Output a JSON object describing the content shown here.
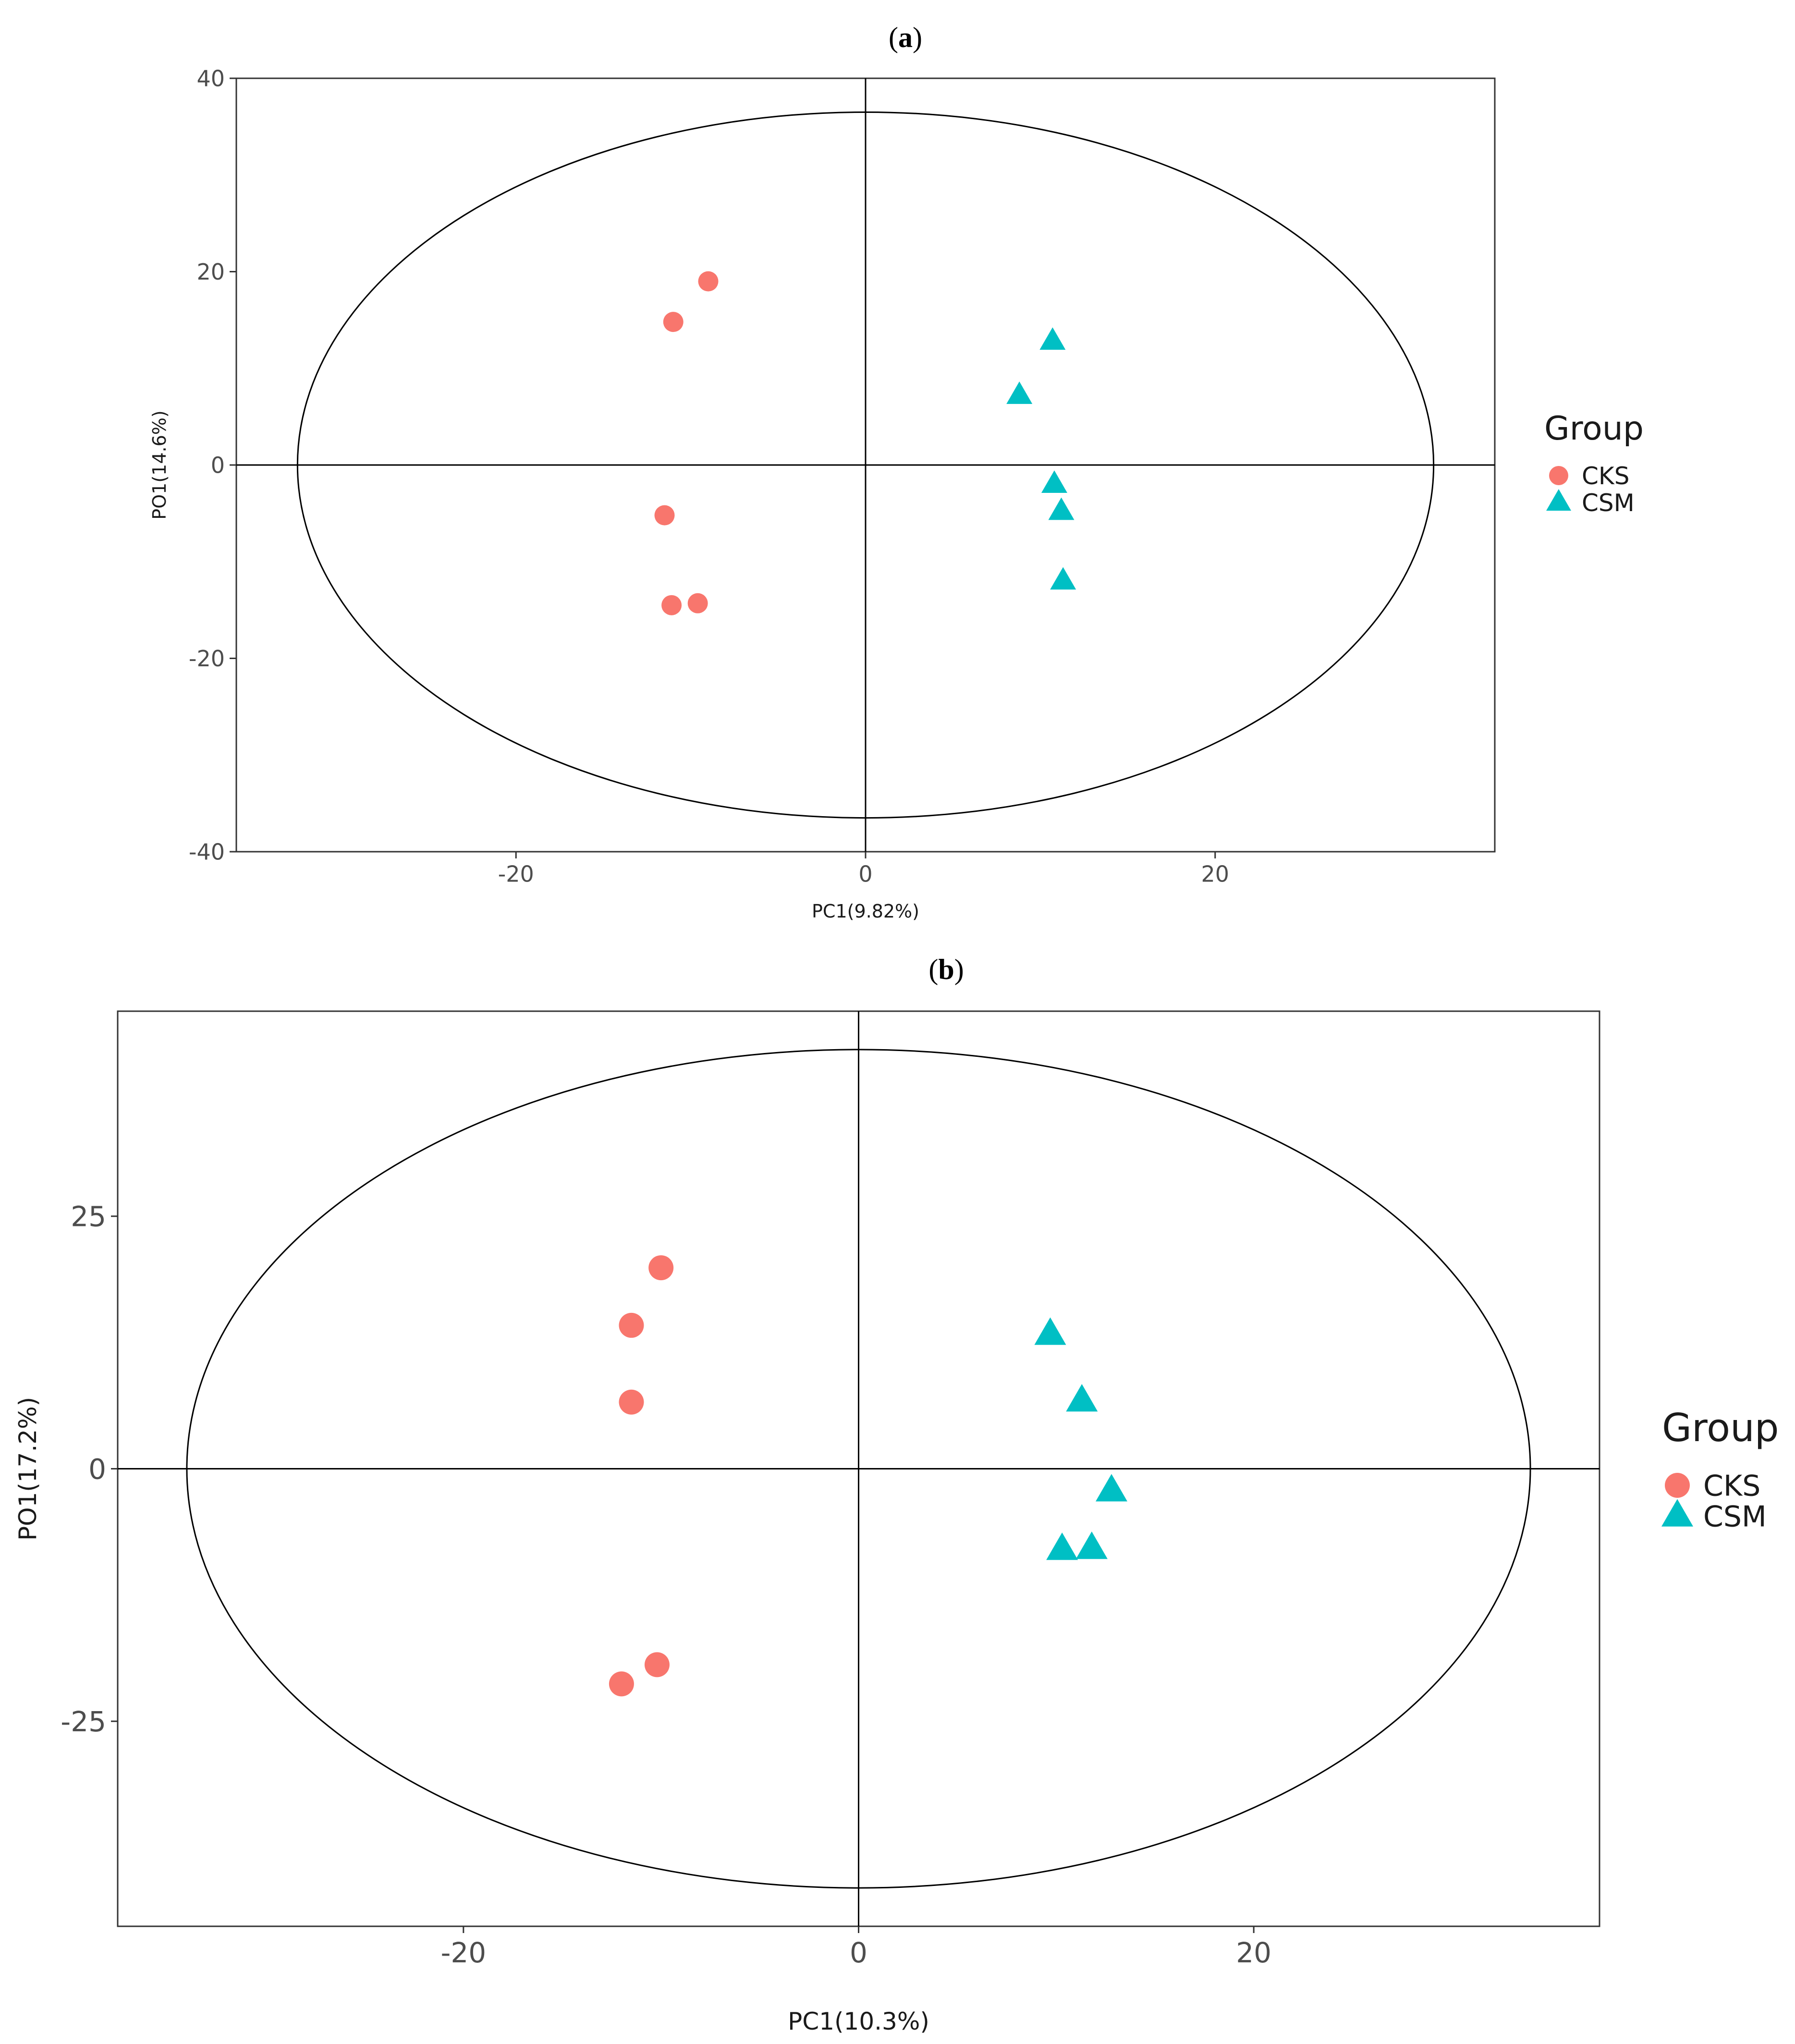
{
  "chart_data": [
    {
      "type": "scatter",
      "panel_label": "a",
      "title": "",
      "xlabel": "PC1(9.82%)",
      "ylabel": "PO1(14.6%)",
      "xlim": [
        -36,
        36
      ],
      "ylim": [
        -40,
        40
      ],
      "xticks": [
        -20,
        0,
        20
      ],
      "yticks": [
        -40,
        -20,
        0,
        20,
        40
      ],
      "grid": false,
      "reference_lines": {
        "x": 0,
        "y": 0
      },
      "ellipse": {
        "cx": 0,
        "cy": 0,
        "rx": 32.5,
        "ry": 36.5
      },
      "legend_title": "Group",
      "legend_position": "right",
      "series": [
        {
          "name": "CKS",
          "color": "#F8766D",
          "marker": "circle",
          "points": [
            [
              -9,
              19
            ],
            [
              -11,
              14.8
            ],
            [
              -11.5,
              -5.2
            ],
            [
              -11.1,
              -14.5
            ],
            [
              -9.6,
              -14.3
            ]
          ]
        },
        {
          "name": "CSM",
          "color": "#00BFC4",
          "marker": "triangle",
          "points": [
            [
              10.7,
              12.8
            ],
            [
              8.8,
              7.2
            ],
            [
              10.8,
              -2
            ],
            [
              11.2,
              -4.8
            ],
            [
              11.3,
              -12
            ]
          ]
        }
      ]
    },
    {
      "type": "scatter",
      "panel_label": "b",
      "title": "",
      "xlabel": "PC1(10.3%)",
      "ylabel": "PO1(17.2%)",
      "xlim": [
        -37.5,
        37.5
      ],
      "ylim": [
        -45.3,
        45.3
      ],
      "xticks": [
        -20,
        0,
        20
      ],
      "yticks": [
        -25,
        0,
        25
      ],
      "grid": false,
      "reference_lines": {
        "x": 0,
        "y": 0
      },
      "ellipse": {
        "cx": 0,
        "cy": 0,
        "rx": 34,
        "ry": 41.5
      },
      "legend_title": "Group",
      "legend_position": "right",
      "series": [
        {
          "name": "CKS",
          "color": "#F8766D",
          "marker": "circle",
          "points": [
            [
              -10,
              19.9
            ],
            [
              -11.5,
              14.2
            ],
            [
              -11.5,
              6.6
            ],
            [
              -10.2,
              -19.4
            ],
            [
              -12,
              -21.3
            ]
          ]
        },
        {
          "name": "CSM",
          "color": "#00BFC4",
          "marker": "triangle",
          "points": [
            [
              9.7,
              13.3
            ],
            [
              11.3,
              6.7
            ],
            [
              12.8,
              -2.2
            ],
            [
              10.3,
              -8
            ],
            [
              11.8,
              -7.9
            ]
          ]
        }
      ]
    }
  ]
}
